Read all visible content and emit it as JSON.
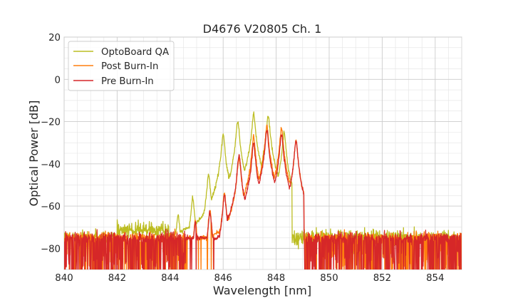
{
  "chart_data": {
    "type": "line",
    "title": "D4676 V20805 Ch. 1",
    "xlabel": "Wavelength [nm]",
    "ylabel": "Optical Power [dB]",
    "xlim": [
      840,
      855
    ],
    "ylim": [
      -90,
      20
    ],
    "xticks": [
      840,
      842,
      844,
      846,
      848,
      850,
      852,
      854
    ],
    "yticks": [
      20,
      0,
      -20,
      -40,
      -60,
      -80
    ],
    "xtick_labels": [
      "840",
      "842",
      "844",
      "846",
      "848",
      "850",
      "852",
      "854"
    ],
    "ytick_labels": [
      "20",
      "0",
      "−20",
      "−40",
      "−60",
      "−80"
    ],
    "grid": true,
    "legend_position": "top-left",
    "noise_floor_db": -75,
    "series": [
      {
        "name": "OptoBoard QA",
        "color": "#bcbd22",
        "peaks": [
          {
            "x": 844.3,
            "y": -64
          },
          {
            "x": 844.85,
            "y": -56
          },
          {
            "x": 845.45,
            "y": -45
          },
          {
            "x": 846.0,
            "y": -26
          },
          {
            "x": 846.55,
            "y": -20
          },
          {
            "x": 847.15,
            "y": -16
          },
          {
            "x": 847.7,
            "y": -17
          },
          {
            "x": 848.3,
            "y": -25
          }
        ]
      },
      {
        "name": "Post Burn-In",
        "color": "#ff7f0e",
        "peaks": [
          {
            "x": 844.95,
            "y": -67
          },
          {
            "x": 845.5,
            "y": -62
          },
          {
            "x": 846.05,
            "y": -54
          },
          {
            "x": 846.6,
            "y": -37
          },
          {
            "x": 847.15,
            "y": -27
          },
          {
            "x": 847.65,
            "y": -22
          },
          {
            "x": 848.2,
            "y": -23
          },
          {
            "x": 848.75,
            "y": -29
          }
        ]
      },
      {
        "name": "Pre Burn-In",
        "color": "#d62728",
        "peaks": [
          {
            "x": 844.95,
            "y": -68
          },
          {
            "x": 845.5,
            "y": -63
          },
          {
            "x": 846.05,
            "y": -55
          },
          {
            "x": 846.6,
            "y": -36
          },
          {
            "x": 847.15,
            "y": -30
          },
          {
            "x": 847.65,
            "y": -24
          },
          {
            "x": 848.2,
            "y": -26
          },
          {
            "x": 848.75,
            "y": -29
          }
        ]
      }
    ]
  }
}
